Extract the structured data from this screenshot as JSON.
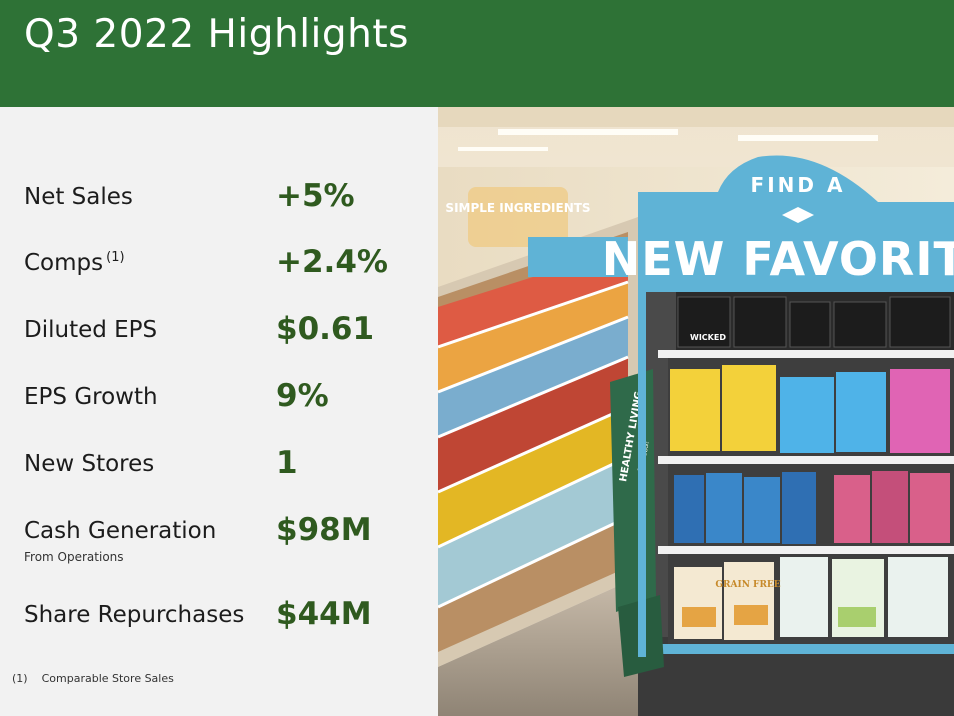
{
  "header": {
    "title": "Q3 2022 Highlights"
  },
  "metrics": [
    {
      "label": "Net Sales",
      "value": "+5%"
    },
    {
      "label": "Comps",
      "footnote_mark": "(1)",
      "value": "+2.4%"
    },
    {
      "label": "Diluted EPS",
      "value": "$0.61"
    },
    {
      "label": "EPS Growth",
      "value": "9%"
    },
    {
      "label": "New Stores",
      "value": "1"
    },
    {
      "label": "Cash Generation",
      "sublabel": "From Operations",
      "value": "$98M"
    },
    {
      "label": "Share Repurchases",
      "value": "$44M"
    }
  ],
  "footnote": {
    "number": "(1)",
    "text": "Comparable Store Sales"
  },
  "photo": {
    "sign_top": "FIND A",
    "sign_main": "NEW FAVORITE",
    "bag_text": "HEALTHY LIVING",
    "bag_subtext": "for less!",
    "shelf_brand_top": "WICKED",
    "shelf_brand_bottom": "GRAIN FREE",
    "back_banner": "SIMPLE INGREDIENTS",
    "colors": {
      "header_green": "#2e7236",
      "value_green": "#2f5a1f",
      "sign_blue": "#5fb3d6"
    }
  }
}
